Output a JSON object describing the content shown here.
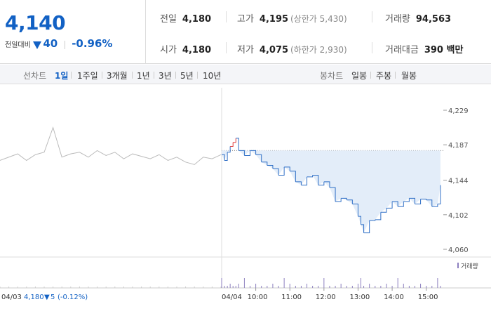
{
  "price": {
    "current": "4,140",
    "change_label": "전일대비",
    "change": "40",
    "change_pct": "-0.96%"
  },
  "stats": {
    "prev_close": {
      "label": "전일",
      "value": "4,180"
    },
    "high": {
      "label": "고가",
      "value": "4,195",
      "sub": "(상한가 5,430)"
    },
    "volume": {
      "label": "거래량",
      "value": "94,563"
    },
    "open": {
      "label": "시가",
      "value": "4,180"
    },
    "low": {
      "label": "저가",
      "value": "4,075",
      "sub": "(하한가 2,930)"
    },
    "trade_value": {
      "label": "거래대금",
      "value": "390 백만"
    }
  },
  "line_chart_tabs": {
    "label": "선차트",
    "items": [
      "1일",
      "1주일",
      "3개월",
      "1년",
      "3년",
      "5년",
      "10년"
    ],
    "active": "1일"
  },
  "candle_chart_tabs": {
    "label": "봉차트",
    "items": [
      "일봉",
      "주봉",
      "월봉"
    ]
  },
  "chart_data": {
    "type": "line",
    "y_ticks": [
      "4,229",
      "4,187",
      "4,144",
      "4,102",
      "4,060"
    ],
    "ylim": [
      4060,
      4229
    ],
    "prev_close": 4180,
    "x_ticks": [
      "04/03",
      "04/04",
      "10:00",
      "11:00",
      "12:00",
      "13:00",
      "14:00",
      "15:00"
    ],
    "volume_legend": "거래량",
    "footer_prev_day": {
      "value": "4,180",
      "change": "5",
      "pct": "(-0.12%)"
    },
    "prev_day_series": {
      "x": [
        0,
        4,
        8,
        12,
        16,
        20,
        24,
        28,
        32,
        36,
        40,
        44,
        48,
        52,
        56,
        60,
        64,
        68,
        72,
        76,
        80,
        84,
        88,
        92,
        96,
        100
      ],
      "values": [
        4168,
        4172,
        4176,
        4168,
        4175,
        4178,
        4208,
        4172,
        4176,
        4178,
        4172,
        4180,
        4174,
        4178,
        4170,
        4176,
        4173,
        4170,
        4175,
        4168,
        4172,
        4166,
        4163,
        4172,
        4170,
        4175
      ]
    },
    "today_series": {
      "x": [
        "09:00",
        "09:05",
        "09:10",
        "09:15",
        "09:20",
        "09:25",
        "09:30",
        "09:40",
        "09:50",
        "10:00",
        "10:10",
        "10:20",
        "10:30",
        "10:40",
        "10:50",
        "11:00",
        "11:10",
        "11:20",
        "11:30",
        "11:40",
        "11:50",
        "12:00",
        "12:10",
        "12:20",
        "12:30",
        "12:40",
        "12:50",
        "13:00",
        "13:05",
        "13:10",
        "13:20",
        "13:30",
        "13:40",
        "13:50",
        "14:00",
        "14:10",
        "14:20",
        "14:30",
        "14:40",
        "14:50",
        "15:00",
        "15:10",
        "15:20",
        "15:25"
      ],
      "values": [
        4175,
        4168,
        4178,
        4185,
        4190,
        4195,
        4180,
        4174,
        4180,
        4175,
        4166,
        4162,
        4158,
        4150,
        4160,
        4155,
        4142,
        4138,
        4148,
        4150,
        4138,
        4142,
        4135,
        4118,
        4122,
        4120,
        4115,
        4100,
        4090,
        4080,
        4095,
        4096,
        4105,
        4110,
        4118,
        4112,
        4118,
        4122,
        4115,
        4121,
        4120,
        4112,
        4115,
        4138
      ]
    }
  }
}
